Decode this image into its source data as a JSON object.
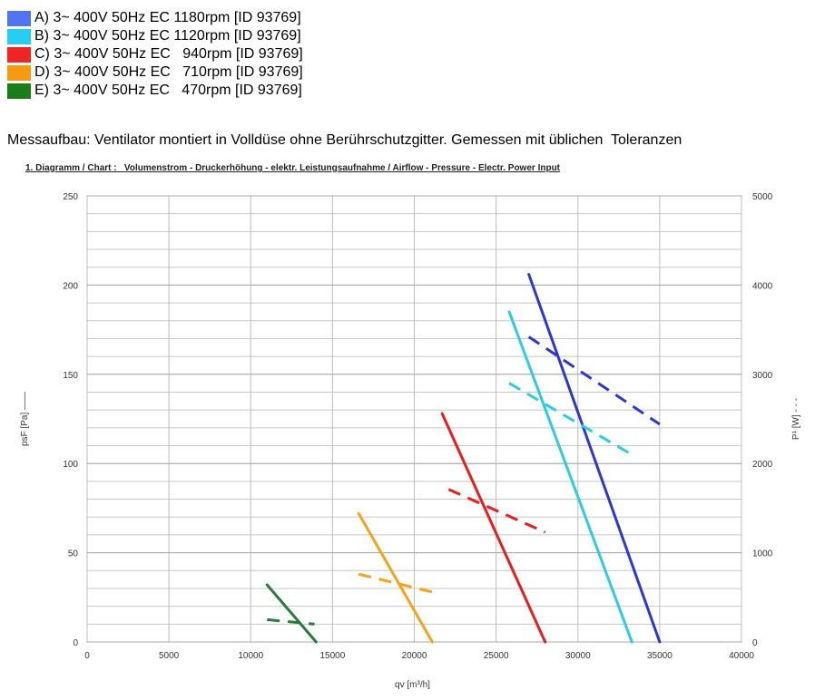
{
  "legend": [
    {
      "label": "A) 3~ 400V 50Hz EC 1180rpm [ID 93769]",
      "color": "#4f76f0"
    },
    {
      "label": "B) 3~ 400V 50Hz EC 1120rpm [ID 93769]",
      "color": "#28cef2"
    },
    {
      "label": "C) 3~ 400V 50Hz EC   940rpm [ID 93769]",
      "color": "#ef2424"
    },
    {
      "label": "D) 3~ 400V 50Hz EC   710rpm [ID 93769]",
      "color": "#f59a12"
    },
    {
      "label": "E) 3~ 400V 50Hz EC   470rpm [ID 93769]",
      "color": "#1a7d1a"
    }
  ],
  "note": "Messaufbau: Ventilator montiert in Volldüse ohne Berührschutzgitter. Gemessen mit üblichen  Toleranzen",
  "chart_title": "1. Diagramm / Chart :   Volumenstrom - Druckerhöhung - elektr. Leistungsaufnahme / Airflow - Pressure - Electr. Power Input",
  "chart_data": {
    "type": "line",
    "xlabel": "qv [m³/h]",
    "ylabel_left": "psF [Pa] ——",
    "ylabel_right": "P¹ [W] - - -",
    "xlim": [
      0,
      40000
    ],
    "ylim_left": [
      0,
      250
    ],
    "ylim_right": [
      0,
      5000
    ],
    "x_ticks": [
      "0",
      "5000",
      "10000",
      "15000",
      "20000",
      "25000",
      "30000",
      "35000",
      "40000"
    ],
    "y_ticks_left": [
      "0",
      "50",
      "100",
      "150",
      "200",
      "250"
    ],
    "y_ticks_right": [
      "0",
      "1000",
      "2000",
      "3000",
      "4000",
      "5000"
    ],
    "grid": true,
    "series": [
      {
        "name": "A",
        "color": "#2b35d8",
        "pressure": {
          "x": [
            27000,
            35000
          ],
          "y": [
            206,
            0
          ]
        },
        "power": {
          "x": [
            27000,
            35000
          ],
          "y": [
            3420,
            2440
          ]
        }
      },
      {
        "name": "B",
        "color": "#2ccbe8",
        "pressure": {
          "x": [
            25800,
            33300
          ],
          "y": [
            185,
            0
          ]
        },
        "power": {
          "x": [
            25800,
            33300
          ],
          "y": [
            2900,
            2100
          ]
        }
      },
      {
        "name": "C",
        "color": "#ea1c1c",
        "pressure": {
          "x": [
            21700,
            28000
          ],
          "y": [
            128,
            0
          ]
        },
        "power": {
          "x": [
            22100,
            28000
          ],
          "y": [
            1710,
            1230
          ]
        }
      },
      {
        "name": "D",
        "color": "#f5a31a",
        "pressure": {
          "x": [
            16600,
            21100
          ],
          "y": [
            72,
            0
          ]
        },
        "power": {
          "x": [
            16600,
            21100
          ],
          "y": [
            760,
            560
          ]
        }
      },
      {
        "name": "E",
        "color": "#2a7a3e",
        "pressure": {
          "x": [
            11000,
            14000
          ],
          "y": [
            32,
            0
          ]
        },
        "power": {
          "x": [
            11000,
            13900
          ],
          "y": [
            250,
            200
          ]
        }
      }
    ]
  }
}
